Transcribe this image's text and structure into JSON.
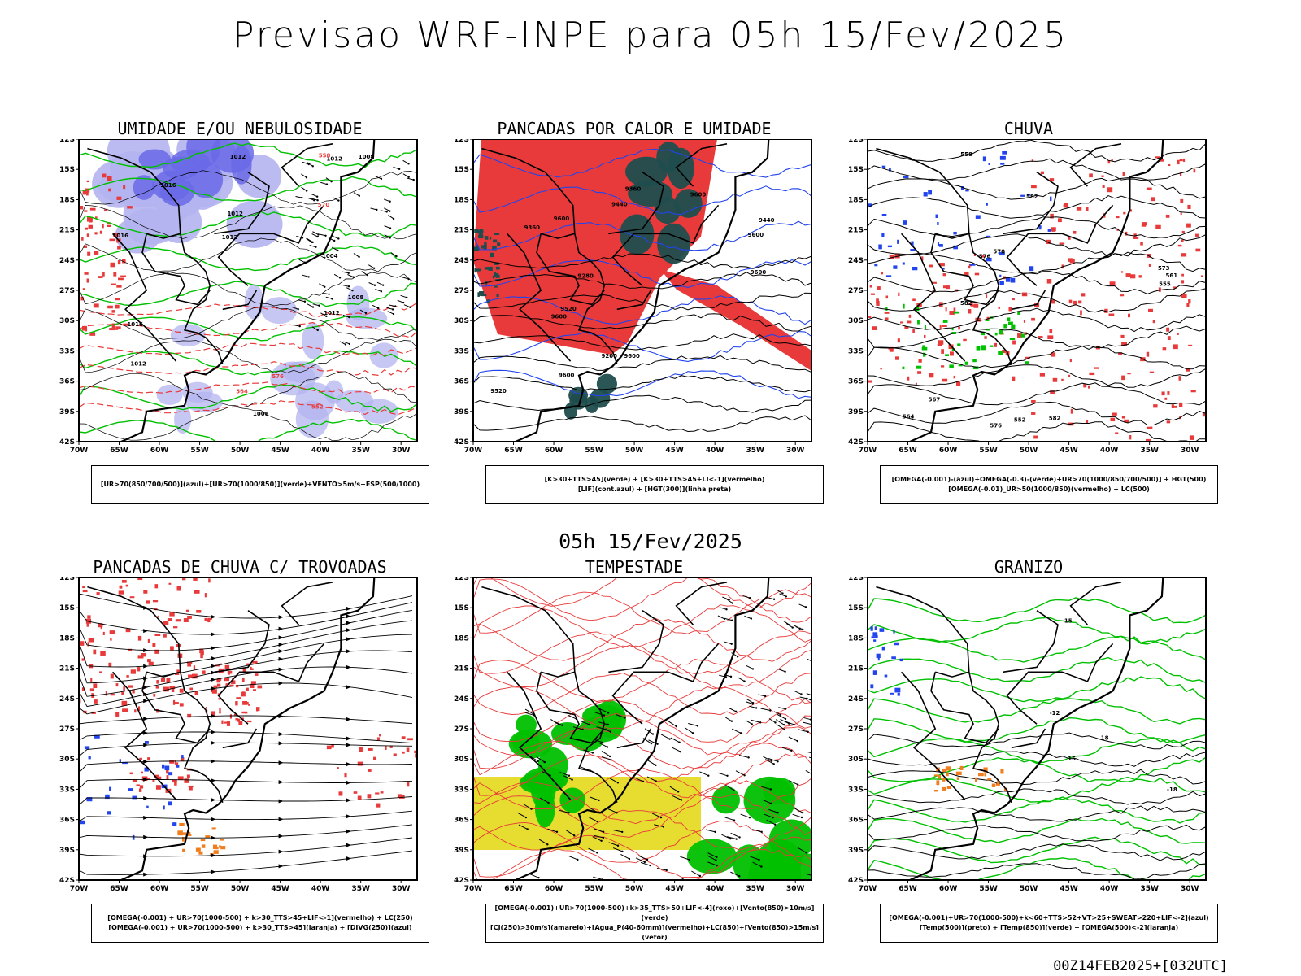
{
  "title": "Previsao WRF-INPE  para 05h 15/Fev/2025",
  "mid_time": "05h 15/Fev/2025",
  "footer": "00Z14FEB2025+[032UTC]",
  "lat_ticks": [
    "12S",
    "15S",
    "18S",
    "21S",
    "24S",
    "27S",
    "30S",
    "33S",
    "36S",
    "39S",
    "42S"
  ],
  "lon_ticks": [
    "70W",
    "65W",
    "60W",
    "55W",
    "50W",
    "45W",
    "40W",
    "35W",
    "30W"
  ],
  "colors": {
    "red": "#e83a3a",
    "green": "#00c000",
    "blue": "#2244ee",
    "lavender": "#b4b4f0",
    "purple": "#6a6ae8",
    "teal": "#1f4d4d",
    "yellow": "#e6dd30",
    "orange": "#f07e1e"
  },
  "panels": [
    {
      "id": "umidade",
      "title": "UMIDADE E/OU NEBULOSIDADE",
      "caption": [
        "[UR>70(850/700/500)](azul)+[UR>70(1000/850)](verde)+VENTO>5m/s+ESP(500/1000)"
      ],
      "contour_labels": [
        "1012",
        "1008",
        "1012",
        "1012",
        "1016",
        "1016",
        "1012",
        "1004",
        "1008",
        "1012",
        "1016",
        "1008",
        "1012",
        "570",
        "564",
        "558",
        "552",
        "576"
      ]
    },
    {
      "id": "pancadas_calor",
      "title": "PANCADAS POR CALOR E UMIDADE",
      "caption": [
        "[K>30+TTS>45](verde) + [K>30+TTS>45+LI<-1](vermelho)",
        "[LIF](cont.azul) + [HGT(300)](linha preta)"
      ],
      "contour_labels": [
        "9600",
        "9600",
        "9600",
        "9600",
        "9600",
        "9520",
        "9440",
        "9360",
        "9280",
        "9200",
        "9520",
        "9440",
        "9360",
        "9600",
        "9600"
      ]
    },
    {
      "id": "chuva",
      "title": "CHUVA",
      "caption": [
        "[OMEGA(-0.001)-(azul)+OMEGA(-0.3)-(verde)+UR>70(1000/850/700/500)] + HGT(500)",
        "[OMEGA(-0.01)_UR>50(1000/850)(vermelho) + LC(500)"
      ],
      "contour_labels": [
        "582",
        "582",
        "582",
        "576",
        "576",
        "573",
        "570",
        "567",
        "564",
        "561",
        "558",
        "555",
        "552"
      ]
    },
    {
      "id": "pancadas_trovoadas",
      "title": "PANCADAS DE CHUVA C/ TROVOADAS",
      "caption": [
        "[OMEGA(-0.001) + UR>70(1000-500) + k>30_TTS>45+LIF<-1](vermelho) + LC(250)",
        "[OMEGA(-0.001) + UR>70(1000-500) + k>30_TTS>45](laranja) + [DIVG(250)](azul)"
      ],
      "contour_labels": []
    },
    {
      "id": "tempestade",
      "title": "TEMPESTADE",
      "caption": [
        "[OMEGA(-0.001)+UR>70(1000-500)+k>35_TTS>50+LIF<-4](roxo)+[Vento(850)>10m/s](verde)",
        "[CJ(250)>30m/s](amarelo)+[Agua_P(40-60mm)](vermelho)+LC(850)+[Vento(850)>15m/s](vetor)"
      ],
      "contour_labels": []
    },
    {
      "id": "granizo",
      "title": "GRANIZO",
      "caption": [
        "[OMEGA(-0.001)+UR>70(1000-500)+k<60+TTS>52+VT>25+SWEAT>220+LIF<-2](azul)",
        "[Temp(500)](preto) + [Temp(850)](verde) + [OMEGA(500)<-2](laranja)"
      ],
      "contour_labels": [
        "-12",
        "-15",
        "-18",
        "15",
        "18"
      ]
    }
  ]
}
